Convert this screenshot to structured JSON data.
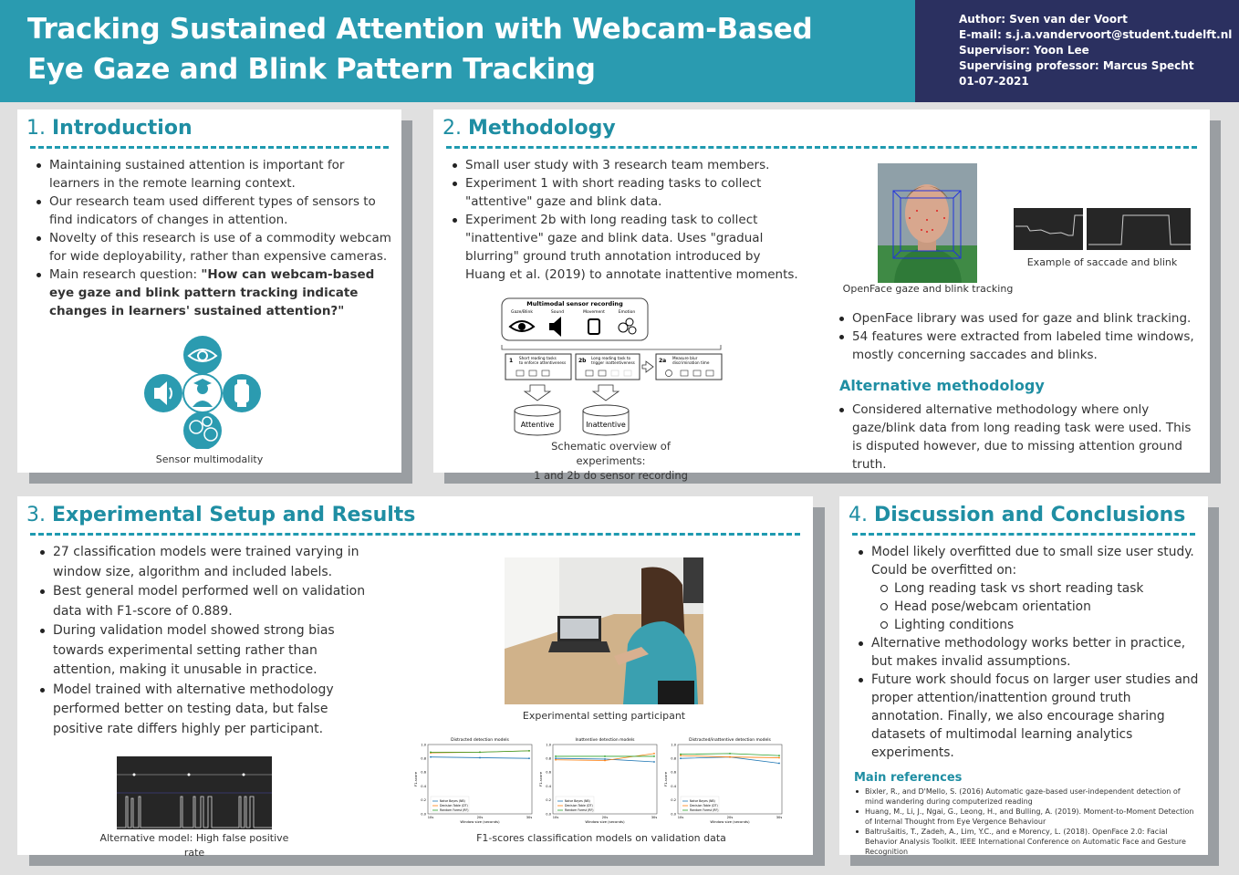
{
  "header": {
    "title_line1": "Tracking Sustained Attention with Webcam-Based",
    "title_line2": "Eye Gaze and Blink Pattern Tracking"
  },
  "meta": {
    "author": "Author: Sven van der Voort",
    "email": "E-mail: s.j.a.vandervoort@student.tudelft.nl",
    "supervisor": "Supervisor: Yoon Lee",
    "professor": "Supervising professor: Marcus Specht",
    "date": "01-07-2021"
  },
  "colors": {
    "accent": "#2a9bb0",
    "navy": "#2b3060",
    "shadow": "#9a9ea2"
  },
  "intro": {
    "num": "1.",
    "title": "Introduction",
    "bullets": [
      "Maintaining sustained attention is important for learners in the remote learning context.",
      "Our research team used different types of sensors to find indicators of changes in attention.",
      "Novelty of this research is use of a commodity webcam for wide deployability, rather than expensive cameras."
    ],
    "question_prefix": "Main research question: ",
    "question": "\"How can webcam-based eye gaze and blink pattern tracking indicate changes in learners' sustained attention?\"",
    "figure_caption": "Sensor multimodality"
  },
  "method": {
    "num": "2.",
    "title": "Methodology",
    "bullets": [
      "Small user study with 3 research team members.",
      "Experiment 1 with short reading tasks to collect \"attentive\" gaze and blink data.",
      "Experiment 2b with long reading task to collect \"inattentive\" gaze and blink data. Uses \"gradual blurring\" ground truth annotation introduced by Huang et al. (2019) to annotate inattentive moments."
    ],
    "openface_caption": "OpenFace gaze and blink tracking",
    "saccade_caption": "Example of saccade and blink",
    "bullets2": [
      "OpenFace library was used for gaze and blink tracking.",
      "54 features were extracted from labeled time windows, mostly concerning saccades and blinks."
    ],
    "alt_title": "Alternative methodology",
    "alt_bullets": [
      "Considered alternative methodology where only gaze/blink data from long reading task were used. This is disputed however, due to missing attention ground truth."
    ],
    "schematic": {
      "title": "Multimodal sensor recording",
      "sensors": [
        "Gaze/Blink",
        "Sound",
        "Movement",
        "Emotion"
      ],
      "box1_num": "1",
      "box1_text": [
        "Short reading tasks",
        "to enforce attentiveness"
      ],
      "box2_num": "2b",
      "box2_text": [
        "Long reading task to",
        "trigger inattentiveness"
      ],
      "box3_num": "2a",
      "box3_text": [
        "Measure blur",
        "discrimination time"
      ],
      "db1": "Attentive",
      "db2": "Inattentive"
    },
    "schematic_caption_1": "Schematic overview of experiments:",
    "schematic_caption_2": "1 and 2b do sensor recording"
  },
  "results": {
    "num": "3.",
    "title": "Experimental Setup and Results",
    "bullets": [
      "27 classification models were trained varying in window size, algorithm and included labels.",
      "Best general model performed well on validation data with F1-score of 0.889.",
      "During validation model showed strong bias towards experimental setting rather than attention, making it unusable in practice.",
      "Model trained with alternative methodology performed better on testing data, but false positive rate differs highly per participant."
    ],
    "photo_caption": "Experimental setting participant",
    "alt_caption": "Alternative model: High false positive rate",
    "f1_caption": "F1-scores classification models on validation data"
  },
  "chart_data": [
    {
      "type": "line",
      "title": "Distracted detection models",
      "categories": [
        "10s",
        "20s",
        "30s"
      ],
      "xlabel": "Window size (seconds)",
      "ylabel": "F1-score",
      "ylim": [
        0.0,
        1.0
      ],
      "series": [
        {
          "name": "Naive Bayes (NB)",
          "color": "#1f77b4",
          "values": [
            0.82,
            0.81,
            0.8
          ]
        },
        {
          "name": "Decision Table (DT)",
          "color": "#ff7f0e",
          "values": [
            0.88,
            0.89,
            0.91
          ]
        },
        {
          "name": "Random Forest (RF)",
          "color": "#2ca02c",
          "values": [
            0.89,
            0.89,
            0.91
          ]
        }
      ]
    },
    {
      "type": "line",
      "title": "Inattentive detection models",
      "categories": [
        "10s",
        "20s",
        "30s"
      ],
      "xlabel": "Window size (seconds)",
      "ylabel": "F1-score",
      "ylim": [
        0.0,
        1.0
      ],
      "series": [
        {
          "name": "Naive Bayes (NB)",
          "color": "#1f77b4",
          "values": [
            0.8,
            0.79,
            0.75
          ]
        },
        {
          "name": "Decision Table (DT)",
          "color": "#ff7f0e",
          "values": [
            0.78,
            0.77,
            0.87
          ]
        },
        {
          "name": "Random Forest (RF)",
          "color": "#2ca02c",
          "values": [
            0.83,
            0.83,
            0.83
          ]
        }
      ]
    },
    {
      "type": "line",
      "title": "Distracted/inattentive detection models",
      "categories": [
        "10s",
        "20s",
        "30s"
      ],
      "xlabel": "Window size (seconds)",
      "ylabel": "F1-score",
      "ylim": [
        0.0,
        1.0
      ],
      "series": [
        {
          "name": "Naive Bayes (NB)",
          "color": "#1f77b4",
          "values": [
            0.8,
            0.82,
            0.73
          ]
        },
        {
          "name": "Decision Table (DT)",
          "color": "#ff7f0e",
          "values": [
            0.84,
            0.82,
            0.81
          ]
        },
        {
          "name": "Random Forest (RF)",
          "color": "#2ca02c",
          "values": [
            0.86,
            0.87,
            0.84
          ]
        }
      ]
    }
  ],
  "discussion": {
    "num": "4.",
    "title": "Discussion and Conclusions",
    "bullet1": "Model likely overfitted due to small size user study. Could be overfitted on:",
    "sub": [
      "Long reading task vs short reading task",
      "Head pose/webcam orientation",
      "Lighting conditions"
    ],
    "bullets": [
      "Alternative methodology works better in practice, but makes invalid assumptions.",
      "Future work should focus on larger user studies and proper attention/inattention ground truth annotation. Finally, we also encourage sharing datasets of multimodal learning analytics experiments."
    ],
    "refs_title": "Main references",
    "refs": [
      "Bixler, R., and D'Mello, S. (2016) Automatic gaze-based user-independent detection of mind wandering during computerized reading",
      "Huang, M., Li, J., Ngai, G., Leong, H., and Bulling, A. (2019). Moment-to-Moment Detection of Internal Thought from Eye Vergence Behaviour",
      "Baltrušaitis, T., Zadeh, A., Lim, Y.C., and e Morency, L. (2018). OpenFace 2.0: Facial Behavior Analysis Toolkit. IEEE International Conference on Automatic Face and Gesture Recognition"
    ]
  }
}
